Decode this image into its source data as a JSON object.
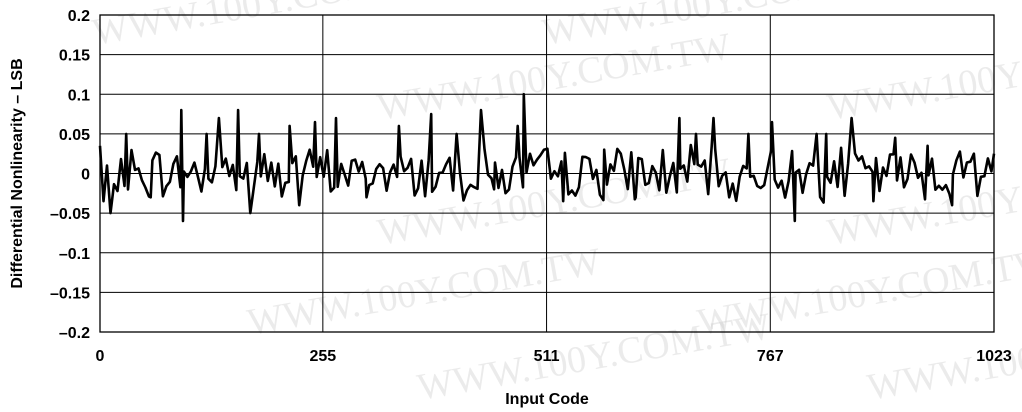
{
  "watermark": "WWW.100Y.COM.TW",
  "chart_data": {
    "type": "line",
    "title": "",
    "xlabel": "Input Code",
    "ylabel": "Differential Nonlinearity – LSB",
    "xlim": [
      0,
      1023
    ],
    "ylim": [
      -0.2,
      0.2
    ],
    "x_ticks": [
      0,
      255,
      511,
      767,
      1023
    ],
    "x_tick_labels": [
      "0",
      "255",
      "511",
      "767",
      "1023"
    ],
    "y_ticks": [
      0.2,
      0.15,
      0.1,
      0.05,
      0,
      -0.05,
      -0.1,
      -0.15,
      -0.2
    ],
    "y_tick_labels": [
      "0.2",
      "0.15",
      "0.1",
      "0.05",
      "0",
      "–0.05",
      "–0.1",
      "–0.15",
      "–0.2"
    ],
    "grid": true,
    "series": [
      {
        "name": "",
        "color": "#000000",
        "noise_seed": 7,
        "x_step": 4,
        "spikes": [
          {
            "x": 0,
            "y": 0.035
          },
          {
            "x": 4,
            "y": -0.035
          },
          {
            "x": 12,
            "y": -0.05
          },
          {
            "x": 30,
            "y": 0.05
          },
          {
            "x": 58,
            "y": -0.03
          },
          {
            "x": 93,
            "y": 0.08
          },
          {
            "x": 95,
            "y": -0.06
          },
          {
            "x": 122,
            "y": 0.05
          },
          {
            "x": 136,
            "y": 0.07
          },
          {
            "x": 158,
            "y": 0.08
          },
          {
            "x": 172,
            "y": -0.05
          },
          {
            "x": 182,
            "y": 0.05
          },
          {
            "x": 217,
            "y": 0.06
          },
          {
            "x": 228,
            "y": -0.04
          },
          {
            "x": 246,
            "y": 0.065
          },
          {
            "x": 270,
            "y": 0.07
          },
          {
            "x": 305,
            "y": -0.03
          },
          {
            "x": 342,
            "y": 0.06
          },
          {
            "x": 379,
            "y": 0.075
          },
          {
            "x": 408,
            "y": 0.05
          },
          {
            "x": 436,
            "y": 0.08
          },
          {
            "x": 451,
            "y": -0.02
          },
          {
            "x": 478,
            "y": 0.06
          },
          {
            "x": 485,
            "y": 0.1
          },
          {
            "x": 530,
            "y": -0.035
          },
          {
            "x": 577,
            "y": 0.03
          },
          {
            "x": 613,
            "y": -0.03
          },
          {
            "x": 663,
            "y": 0.07
          },
          {
            "x": 682,
            "y": 0.05
          },
          {
            "x": 702,
            "y": 0.07
          },
          {
            "x": 720,
            "y": -0.03
          },
          {
            "x": 742,
            "y": 0.05
          },
          {
            "x": 769,
            "y": 0.065
          },
          {
            "x": 795,
            "y": -0.06
          },
          {
            "x": 820,
            "y": 0.05
          },
          {
            "x": 831,
            "y": 0.05
          },
          {
            "x": 860,
            "y": 0.07
          },
          {
            "x": 885,
            "y": -0.035
          },
          {
            "x": 910,
            "y": 0.045
          },
          {
            "x": 947,
            "y": 0.035
          },
          {
            "x": 975,
            "y": -0.04
          },
          {
            "x": 1000,
            "y": 0.025
          },
          {
            "x": 1023,
            "y": 0.025
          }
        ]
      }
    ]
  }
}
